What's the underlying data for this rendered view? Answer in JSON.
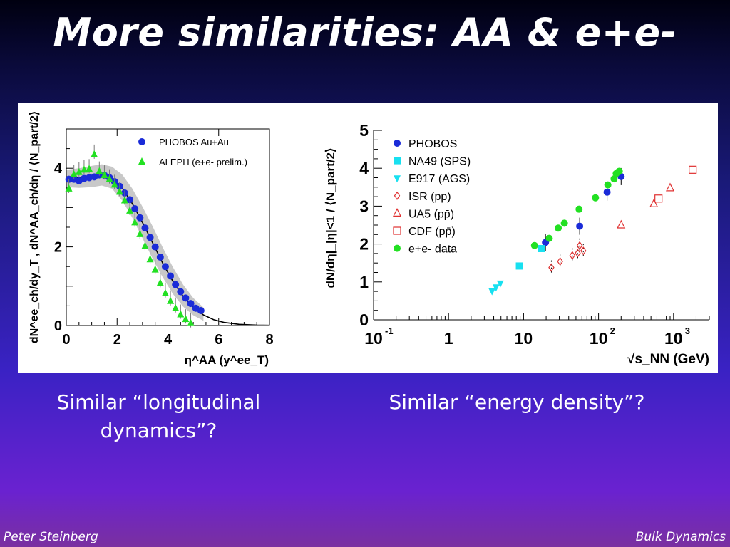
{
  "slide": {
    "title": "More similarities: AA & e+e-",
    "caption_left": "Similar “longitudinal dynamics”?",
    "caption_right": "Similar “energy density”?",
    "footer_author": "Peter Steinberg",
    "footer_topic": "Bulk Dynamics"
  },
  "chart_data": [
    {
      "type": "scatter",
      "ylabel": "dN^ee_ch/dy_T , dN^AA_ch/dη / ⟨N_part/2⟩",
      "xlabel": "η^AA (y^ee_T)",
      "xlim": [
        0,
        8
      ],
      "ylim": [
        0,
        5
      ],
      "xticks": [
        "0",
        "2",
        "4",
        "6",
        "8"
      ],
      "yticks": [
        "0",
        "2",
        "4"
      ],
      "legend_position": "top-right",
      "series": [
        {
          "name": "PHOBOS Au+Au",
          "marker": "circle",
          "color": "#1a2bd8",
          "points": [
            [
              0.1,
              3.72
            ],
            [
              0.3,
              3.72
            ],
            [
              0.5,
              3.68
            ],
            [
              0.7,
              3.74
            ],
            [
              0.9,
              3.76
            ],
            [
              1.1,
              3.78
            ],
            [
              1.3,
              3.83
            ],
            [
              1.5,
              3.82
            ],
            [
              1.7,
              3.76
            ],
            [
              1.9,
              3.66
            ],
            [
              2.1,
              3.54
            ],
            [
              2.3,
              3.37
            ],
            [
              2.5,
              3.2
            ],
            [
              2.7,
              2.97
            ],
            [
              2.9,
              2.74
            ],
            [
              3.1,
              2.48
            ],
            [
              3.3,
              2.24
            ],
            [
              3.5,
              2.0
            ],
            [
              3.7,
              1.74
            ],
            [
              3.9,
              1.5
            ],
            [
              4.1,
              1.26
            ],
            [
              4.3,
              1.04
            ],
            [
              4.5,
              0.86
            ],
            [
              4.7,
              0.7
            ],
            [
              4.9,
              0.56
            ],
            [
              5.1,
              0.44
            ],
            [
              5.3,
              0.38
            ]
          ]
        },
        {
          "name": "ALEPH (e+e- prelim.)",
          "marker": "triangle-up",
          "color": "#22e022",
          "points": [
            [
              0.1,
              3.48
            ],
            [
              0.3,
              3.84
            ],
            [
              0.5,
              3.9
            ],
            [
              0.7,
              3.96
            ],
            [
              0.9,
              3.98
            ],
            [
              1.1,
              4.35
            ],
            [
              1.3,
              3.92
            ],
            [
              1.5,
              3.82
            ],
            [
              1.7,
              3.72
            ],
            [
              1.9,
              3.58
            ],
            [
              2.1,
              3.4
            ],
            [
              2.3,
              3.18
            ],
            [
              2.5,
              2.92
            ],
            [
              2.7,
              2.62
            ],
            [
              2.9,
              2.32
            ],
            [
              3.1,
              2.02
            ],
            [
              3.3,
              1.68
            ],
            [
              3.5,
              1.42
            ],
            [
              3.7,
              1.08
            ],
            [
              3.9,
              0.82
            ],
            [
              4.1,
              0.62
            ],
            [
              4.3,
              0.44
            ],
            [
              4.5,
              0.28
            ],
            [
              4.7,
              0.16
            ],
            [
              4.9,
              0.06
            ]
          ]
        }
      ],
      "curve": [
        [
          0,
          3.76
        ],
        [
          0.5,
          3.76
        ],
        [
          1,
          3.8
        ],
        [
          1.4,
          3.84
        ],
        [
          1.8,
          3.76
        ],
        [
          2.2,
          3.5
        ],
        [
          2.6,
          3.1
        ],
        [
          3.0,
          2.62
        ],
        [
          3.4,
          2.1
        ],
        [
          3.8,
          1.58
        ],
        [
          4.2,
          1.12
        ],
        [
          4.6,
          0.74
        ],
        [
          5.0,
          0.46
        ],
        [
          5.4,
          0.27
        ],
        [
          5.8,
          0.15
        ],
        [
          6.2,
          0.08
        ],
        [
          6.8,
          0.03
        ],
        [
          7.5,
          0.01
        ],
        [
          8,
          0.005
        ]
      ],
      "band": {
        "upper": [
          [
            0,
            3.96
          ],
          [
            0.5,
            4.0
          ],
          [
            1,
            4.06
          ],
          [
            1.4,
            4.1
          ],
          [
            1.8,
            4.04
          ],
          [
            2.2,
            3.84
          ],
          [
            2.6,
            3.48
          ],
          [
            3.0,
            3.02
          ],
          [
            3.4,
            2.52
          ],
          [
            3.8,
            1.98
          ],
          [
            4.2,
            1.48
          ],
          [
            4.6,
            1.04
          ],
          [
            5.0,
            0.7
          ],
          [
            5.4,
            0.46
          ]
        ],
        "lower": [
          [
            0,
            3.52
          ],
          [
            0.5,
            3.5
          ],
          [
            1,
            3.52
          ],
          [
            1.4,
            3.56
          ],
          [
            1.8,
            3.48
          ],
          [
            2.2,
            3.18
          ],
          [
            2.6,
            2.74
          ],
          [
            3.0,
            2.22
          ],
          [
            3.4,
            1.7
          ],
          [
            3.8,
            1.22
          ],
          [
            4.2,
            0.8
          ],
          [
            4.6,
            0.48
          ],
          [
            5.0,
            0.26
          ],
          [
            5.4,
            0.12
          ]
        ]
      }
    },
    {
      "type": "scatter",
      "ylabel": "dN/dη|_|η|<1 / ⟨N_part/2⟩",
      "xlabel": "√s_NN (GeV)",
      "xscale": "log",
      "xlim": [
        0.1,
        3000
      ],
      "ylim": [
        0,
        5
      ],
      "xticks": [
        {
          "v": 0.1,
          "b": "10",
          "e": "-1"
        },
        {
          "v": 1,
          "b": "1",
          "e": ""
        },
        {
          "v": 10,
          "b": "10",
          "e": ""
        },
        {
          "v": 100,
          "b": "10",
          "e": "2"
        },
        {
          "v": 1000,
          "b": "10",
          "e": "3"
        }
      ],
      "yticks": [
        "0",
        "1",
        "2",
        "3",
        "4",
        "5"
      ],
      "legend_position": "top-left",
      "series": [
        {
          "name": "PHOBOS",
          "marker": "circle",
          "color": "#1a2bd8",
          "points": [
            [
              19.6,
              2.04
            ],
            [
              56,
              2.47
            ],
            [
              130,
              3.37
            ],
            [
              200,
              3.78
            ]
          ]
        },
        {
          "name": "NA49 (SPS)",
          "marker": "square",
          "color": "#18e0f0",
          "points": [
            [
              8.8,
              1.42
            ],
            [
              17.3,
              1.88
            ]
          ]
        },
        {
          "name": "E917 (AGS)",
          "marker": "triangle-down",
          "color": "#18e0f0",
          "points": [
            [
              3.8,
              0.76
            ],
            [
              4.3,
              0.86
            ],
            [
              4.9,
              0.96
            ]
          ]
        },
        {
          "name": "ISR (pp)",
          "marker": "diamond-open",
          "color": "#e03030",
          "points": [
            [
              23.5,
              1.38
            ],
            [
              30.7,
              1.54
            ],
            [
              44.7,
              1.7
            ],
            [
              52.8,
              1.76
            ],
            [
              62.7,
              1.82
            ],
            [
              56,
              1.96
            ]
          ]
        },
        {
          "name": "UA5 (pp̄)",
          "marker": "triangle-open",
          "color": "#e03030",
          "points": [
            [
              200,
              2.5
            ],
            [
              546,
              3.06
            ],
            [
              900,
              3.48
            ]
          ]
        },
        {
          "name": "CDF (pp̄)",
          "marker": "square-open",
          "color": "#e03030",
          "points": [
            [
              630,
              3.2
            ],
            [
              1800,
              3.96
            ]
          ]
        },
        {
          "name": "e+e- data",
          "marker": "circle",
          "color": "#22e022",
          "points": [
            [
              14,
              1.96
            ],
            [
              22,
              2.15
            ],
            [
              29,
              2.42
            ],
            [
              35,
              2.55
            ],
            [
              55,
              2.92
            ],
            [
              91,
              3.22
            ],
            [
              133,
              3.56
            ],
            [
              161,
              3.72
            ],
            [
              172,
              3.86
            ],
            [
              183,
              3.9
            ],
            [
              189,
              3.92
            ]
          ]
        }
      ]
    }
  ]
}
